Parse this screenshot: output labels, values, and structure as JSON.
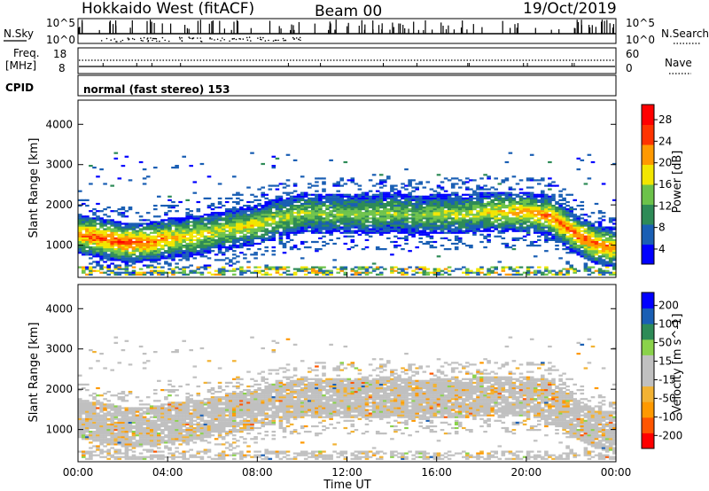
{
  "header": {
    "station": "Hokkaido West (fitACF)",
    "beam": "Beam 00",
    "date": "19/Oct/2019"
  },
  "noise_panel": {
    "left_label": "N.Sky",
    "right_label": "N.Search",
    "tick_top": "10^5",
    "tick_bottom": "10^0"
  },
  "freq_panel": {
    "left_label_1": "Freq.",
    "left_label_2": "[MHz]",
    "right_label": "Nave",
    "left_ticks": [
      "18",
      "8"
    ],
    "right_ticks": [
      "60",
      "0"
    ]
  },
  "cpid": {
    "label": "CPID",
    "value": "normal (fast stereo) 153"
  },
  "chart_data": [
    {
      "type": "heatmap",
      "name": "power",
      "xlabel": "Time UT",
      "ylabel": "Slant Range [km]",
      "x_ticks": [
        "00:00",
        "04:00",
        "08:00",
        "12:00",
        "16:00",
        "20:00",
        "00:00"
      ],
      "xlim_hours": [
        0,
        24
      ],
      "ylim_km": [
        200,
        4600
      ],
      "y_ticks": [
        1000,
        2000,
        3000,
        4000
      ],
      "colorbar_label": "Power [dB]",
      "colorbar_ticks": [
        "28",
        "24",
        "20",
        "16",
        "12",
        "8",
        "4"
      ],
      "colorbar_range": [
        0,
        30
      ],
      "colors": [
        "#0000ff",
        "#1a5fb4",
        "#2e8b57",
        "#6cc24a",
        "#f2e600",
        "#ff9900",
        "#ff3300",
        "#ff0000"
      ],
      "bands": [
        {
          "t": [
            0,
            1,
            2,
            3,
            4,
            5,
            6,
            7,
            8,
            9,
            10,
            11,
            12,
            13,
            14,
            15,
            16,
            17,
            18,
            19,
            20,
            21,
            22,
            23,
            24
          ],
          "center_km": [
            1250,
            1150,
            1050,
            1050,
            1150,
            1200,
            1300,
            1400,
            1500,
            1650,
            1800,
            1750,
            1750,
            1750,
            1800,
            1700,
            1750,
            1750,
            1800,
            1800,
            1800,
            1700,
            1300,
            1000,
            900
          ],
          "peak_db": [
            24,
            26,
            27,
            25,
            22,
            20,
            18,
            18,
            18,
            17,
            16,
            15,
            14,
            15,
            15,
            14,
            16,
            17,
            18,
            20,
            22,
            24,
            25,
            26,
            22
          ]
        }
      ]
    },
    {
      "type": "heatmap",
      "name": "velocity",
      "xlabel": "Time UT",
      "ylabel": "Slant Range [km]",
      "x_ticks": [
        "00:00",
        "04:00",
        "08:00",
        "12:00",
        "16:00",
        "20:00",
        "00:00"
      ],
      "xlim_hours": [
        0,
        24
      ],
      "ylim_km": [
        200,
        4600
      ],
      "y_ticks": [
        1000,
        2000,
        3000,
        4000
      ],
      "colorbar_label": "Velocity [m s^-1]",
      "colorbar_ticks": [
        "200",
        "100",
        "50",
        "15",
        "-15",
        "-50",
        "-100",
        "-200"
      ],
      "colorbar_range": [
        -250,
        250
      ],
      "colors": [
        "#ff0000",
        "#ff5500",
        "#ff9900",
        "#f2b233",
        "#c0c0c0",
        "#c0c0c0",
        "#8ad24a",
        "#2e8b57",
        "#1a5fb4",
        "#0000ff"
      ],
      "dominant_value": 0
    }
  ]
}
